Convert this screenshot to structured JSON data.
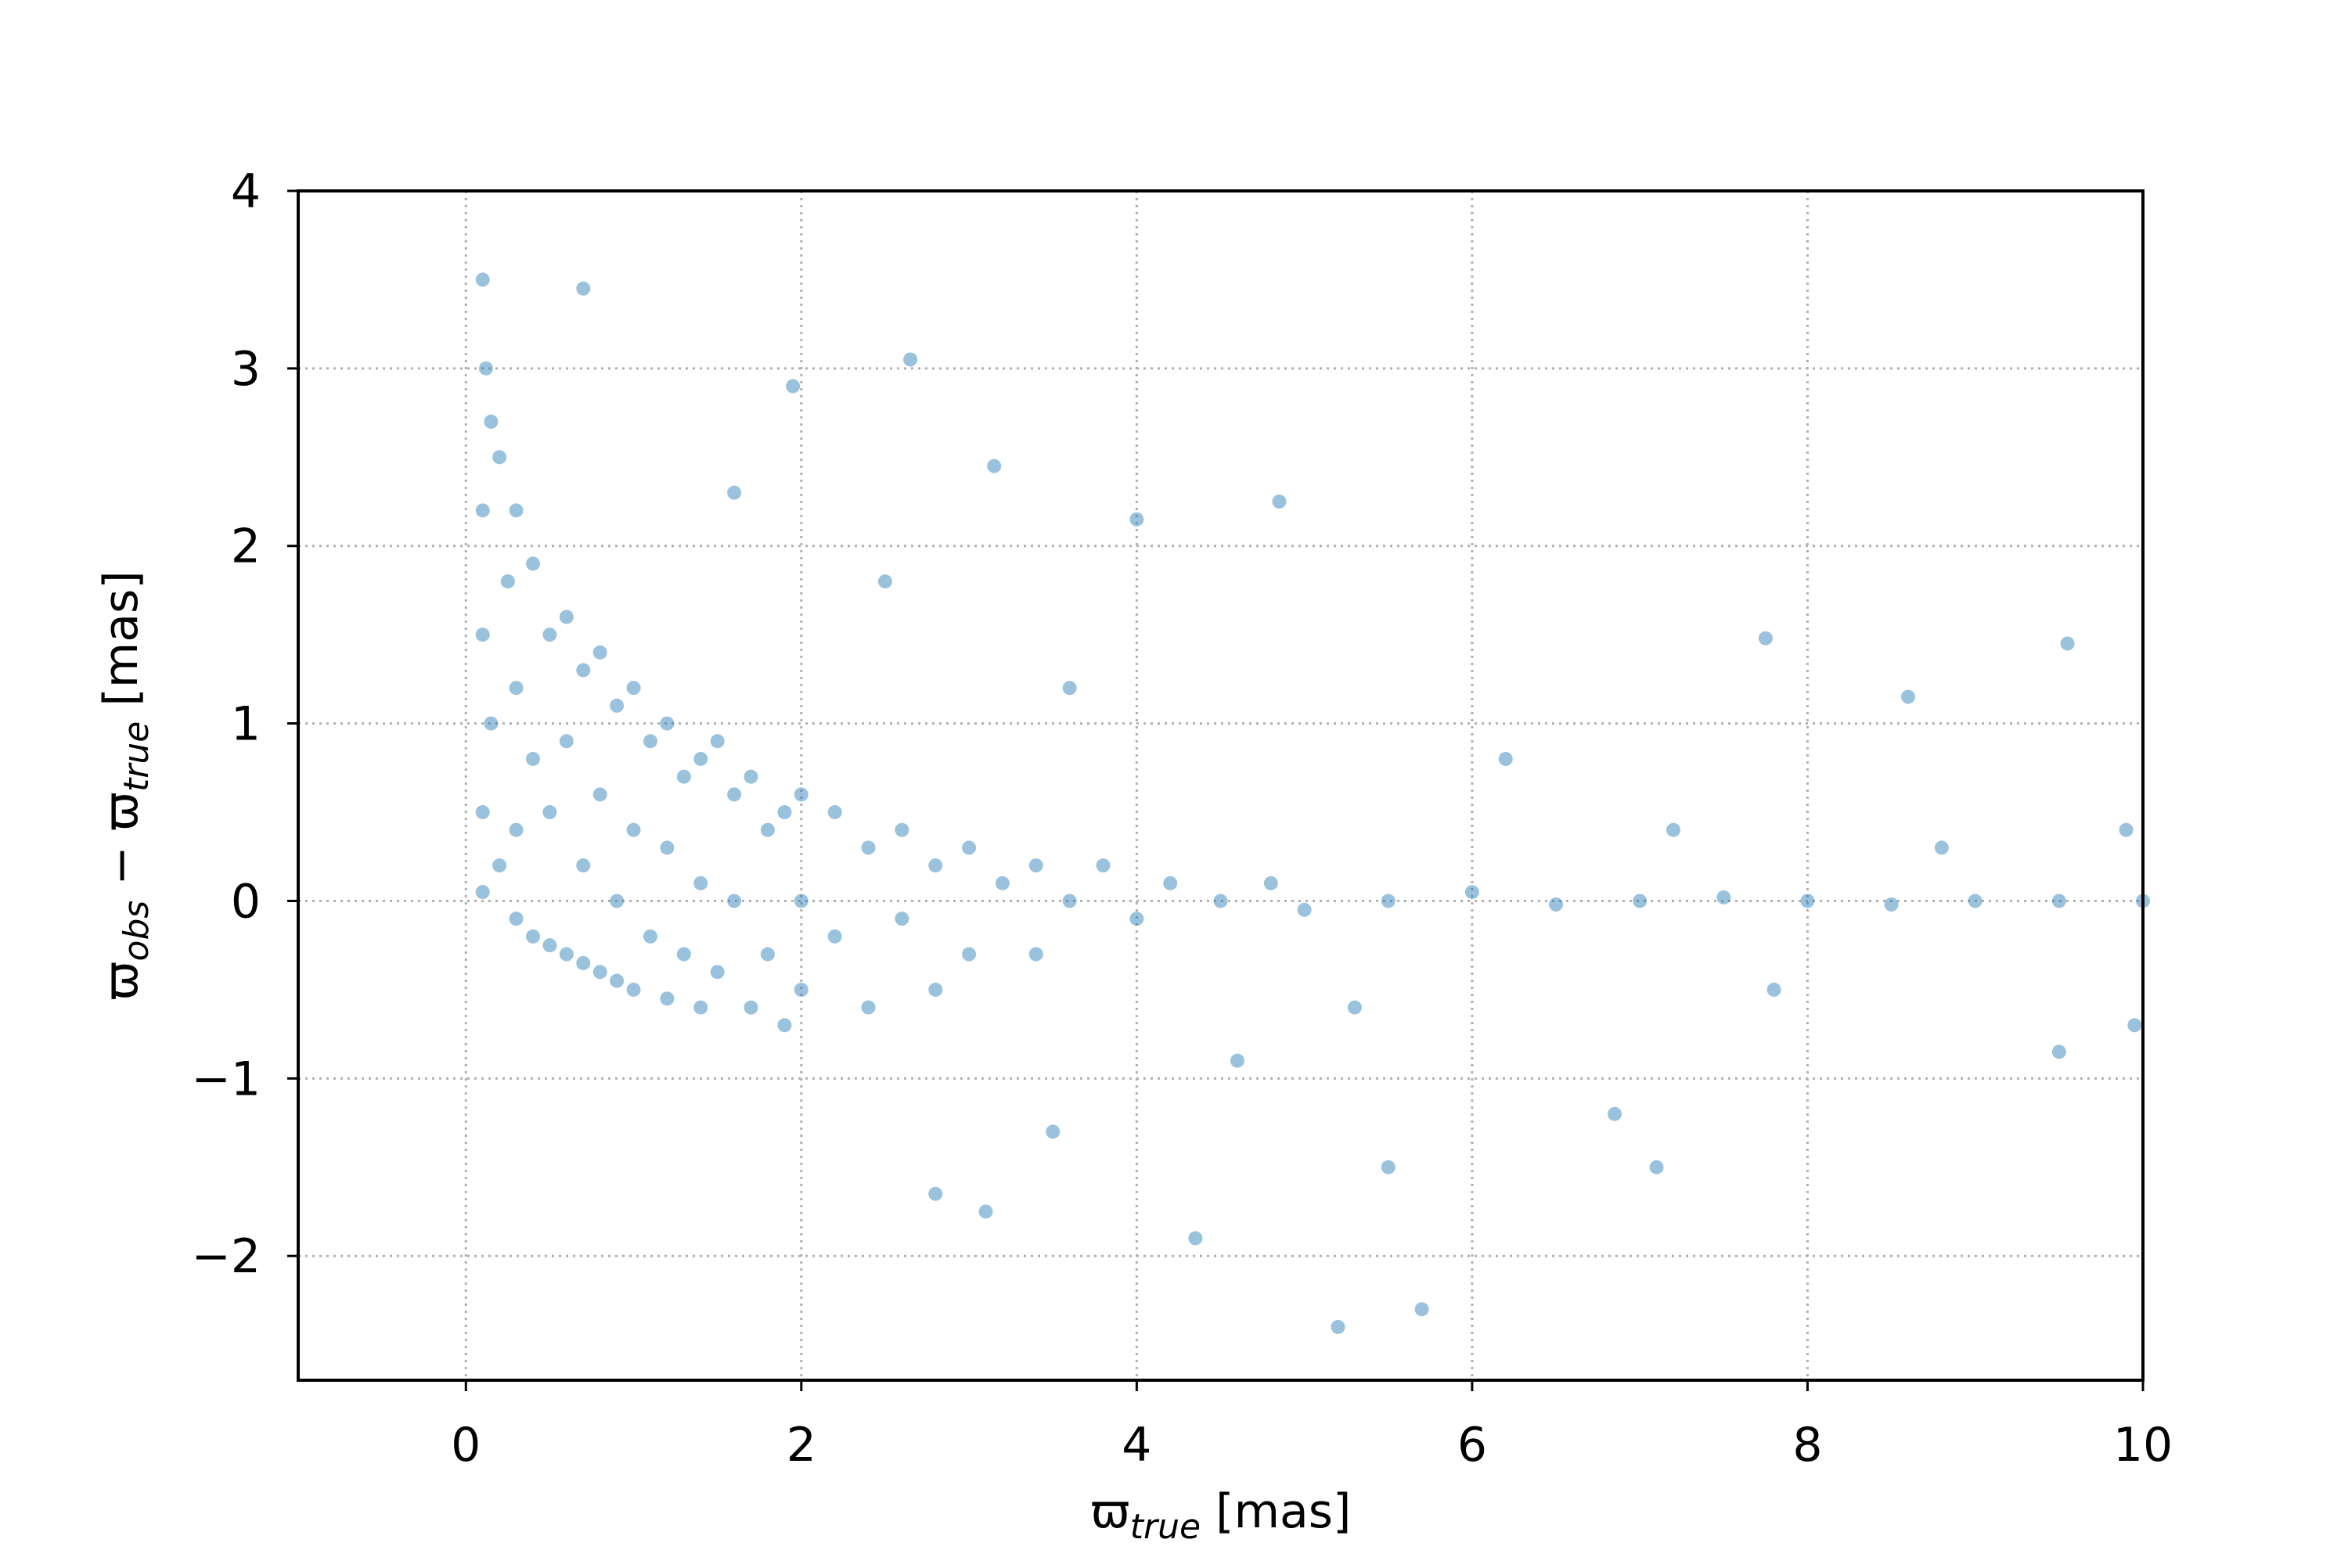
{
  "chart_data": {
    "type": "scatter",
    "xlabel": [
      "ϖ",
      "true",
      " [mas]"
    ],
    "ylabel": [
      "ϖ",
      "obs",
      " − ϖ",
      "true",
      " [mas]"
    ],
    "color": "#1f77b4",
    "grid": true,
    "xlim": [
      -1,
      10
    ],
    "ylim": [
      -2.7,
      4
    ],
    "xticks": [
      0,
      2,
      4,
      6,
      8,
      10
    ],
    "yticks": [
      {
        "value": -2,
        "label": "−2"
      },
      {
        "value": -1,
        "label": "−1"
      },
      0,
      1,
      2,
      3,
      4
    ],
    "x": [
      0.1,
      0.12,
      0.15,
      0.1,
      0.2,
      0.1,
      0.15,
      0.1,
      0.2,
      0.1,
      0.25,
      0.3,
      0.3,
      0.3,
      0.3,
      0.4,
      0.4,
      0.4,
      0.5,
      0.5,
      0.5,
      0.6,
      0.6,
      0.6,
      0.7,
      0.7,
      0.7,
      0.8,
      0.8,
      0.8,
      0.9,
      0.9,
      0.9,
      1.0,
      1.0,
      1.0,
      1.1,
      1.1,
      1.2,
      1.2,
      1.2,
      1.3,
      1.3,
      1.4,
      1.4,
      1.4,
      1.5,
      1.5,
      1.6,
      1.6,
      1.7,
      1.7,
      1.8,
      1.8,
      1.9,
      1.9,
      2.0,
      2.0,
      2.0,
      2.2,
      2.2,
      2.4,
      2.4,
      2.6,
      2.6,
      2.8,
      2.8,
      3.0,
      3.0,
      3.2,
      3.4,
      3.4,
      3.6,
      3.8,
      4.0,
      4.2,
      4.5,
      4.8,
      5.0,
      5.5,
      6.0,
      6.5,
      7.0,
      7.5,
      8.0,
      8.5,
      9.0,
      9.5,
      10.0,
      0.7,
      2.65,
      1.95,
      3.15,
      4.85,
      4.0,
      9.55,
      7.75,
      8.6,
      5.2,
      5.7,
      4.35,
      2.8,
      3.1,
      7.1,
      6.85,
      9.5,
      9.95,
      3.5,
      5.5,
      2.5,
      1.6,
      3.6,
      6.2,
      7.2,
      8.8,
      9.9,
      5.3,
      4.6,
      7.8
    ],
    "values": [
      3.5,
      3.0,
      2.7,
      2.2,
      2.5,
      1.5,
      1.0,
      0.5,
      0.2,
      0.05,
      1.8,
      2.2,
      1.2,
      0.4,
      -0.1,
      1.9,
      0.8,
      -0.2,
      1.5,
      0.5,
      -0.25,
      1.6,
      0.9,
      -0.3,
      1.3,
      0.2,
      -0.35,
      1.4,
      0.6,
      -0.4,
      1.1,
      0.0,
      -0.45,
      1.2,
      0.4,
      -0.5,
      0.9,
      -0.2,
      1.0,
      0.3,
      -0.55,
      0.7,
      -0.3,
      0.8,
      0.1,
      -0.6,
      0.9,
      -0.4,
      0.6,
      0.0,
      0.7,
      -0.6,
      0.4,
      -0.3,
      0.5,
      -0.7,
      0.6,
      0.0,
      -0.5,
      0.5,
      -0.2,
      0.3,
      -0.6,
      0.4,
      -0.1,
      0.2,
      -0.5,
      0.3,
      -0.3,
      0.1,
      0.2,
      -0.3,
      0.0,
      0.2,
      -0.1,
      0.1,
      0.0,
      0.1,
      -0.05,
      0.0,
      0.05,
      -0.02,
      0.0,
      0.02,
      0.0,
      -0.02,
      0.0,
      0.0,
      0.0,
      3.45,
      3.05,
      2.9,
      2.45,
      2.25,
      2.15,
      1.45,
      1.48,
      1.15,
      -2.4,
      -2.3,
      -1.9,
      -1.65,
      -1.75,
      -1.5,
      -1.2,
      -0.85,
      -0.7,
      -1.3,
      -1.5,
      1.8,
      2.3,
      1.2,
      0.8,
      0.4,
      0.3,
      0.4,
      -0.6,
      -0.9,
      -0.5
    ]
  }
}
